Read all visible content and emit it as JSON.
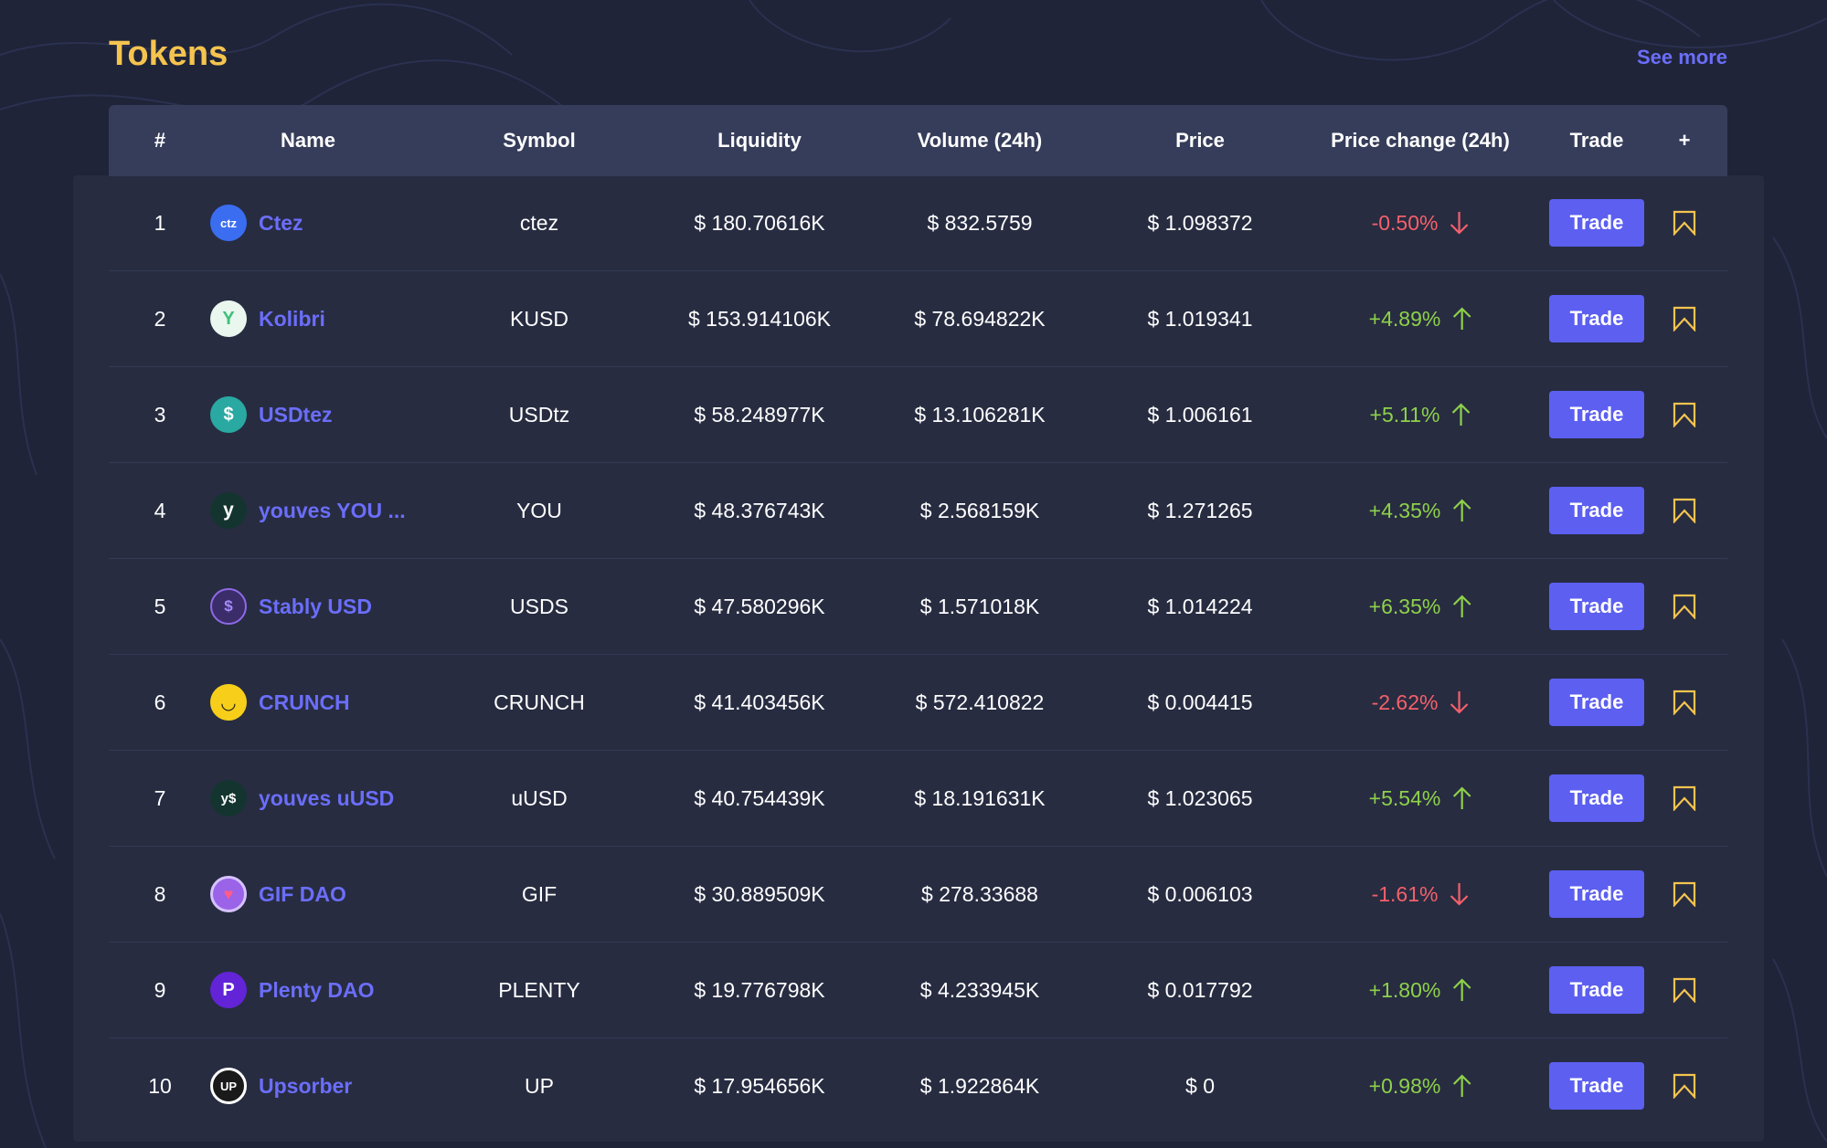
{
  "page": {
    "title": "Tokens",
    "see_more": "See more"
  },
  "colors": {
    "accent": "#5c5ff0",
    "title": "#f5c44f",
    "link": "#6b6ef9",
    "positive": "#8ed14a",
    "negative": "#f4606a",
    "bookmark": "#f5c44f"
  },
  "table": {
    "headers": {
      "index": "#",
      "name": "Name",
      "symbol": "Symbol",
      "liquidity": "Liquidity",
      "volume": "Volume (24h)",
      "price": "Price",
      "price_change": "Price change (24h)",
      "trade": "Trade",
      "add": "+"
    },
    "rows": [
      {
        "index": "1",
        "name": "Ctez",
        "icon": "ctez-logo",
        "symbol": "ctez",
        "liquidity": "$ 180.70616K",
        "volume": "$ 832.5759",
        "price": "$ 1.098372",
        "change": "-0.50%",
        "direction": "down",
        "trade": "Trade"
      },
      {
        "index": "2",
        "name": "Kolibri",
        "icon": "kolibri-logo",
        "symbol": "KUSD",
        "liquidity": "$ 153.914106K",
        "volume": "$ 78.694822K",
        "price": "$ 1.019341",
        "change": "+4.89%",
        "direction": "up",
        "trade": "Trade"
      },
      {
        "index": "3",
        "name": "USDtez",
        "icon": "usdtez-logo",
        "symbol": "USDtz",
        "liquidity": "$ 58.248977K",
        "volume": "$ 13.106281K",
        "price": "$ 1.006161",
        "change": "+5.11%",
        "direction": "up",
        "trade": "Trade"
      },
      {
        "index": "4",
        "name": "youves YOU ...",
        "icon": "youves-logo",
        "symbol": "YOU",
        "liquidity": "$ 48.376743K",
        "volume": "$ 2.568159K",
        "price": "$ 1.271265",
        "change": "+4.35%",
        "direction": "up",
        "trade": "Trade"
      },
      {
        "index": "5",
        "name": "Stably USD",
        "icon": "stably-logo",
        "symbol": "USDS",
        "liquidity": "$ 47.580296K",
        "volume": "$ 1.571018K",
        "price": "$ 1.014224",
        "change": "+6.35%",
        "direction": "up",
        "trade": "Trade"
      },
      {
        "index": "6",
        "name": "CRUNCH",
        "icon": "crunch-logo",
        "symbol": "CRUNCH",
        "liquidity": "$ 41.403456K",
        "volume": "$ 572.410822",
        "price": "$ 0.004415",
        "change": "-2.62%",
        "direction": "down",
        "trade": "Trade"
      },
      {
        "index": "7",
        "name": "youves uUSD",
        "icon": "uusd-logo",
        "symbol": "uUSD",
        "liquidity": "$ 40.754439K",
        "volume": "$ 18.191631K",
        "price": "$ 1.023065",
        "change": "+5.54%",
        "direction": "up",
        "trade": "Trade"
      },
      {
        "index": "8",
        "name": "GIF DAO",
        "icon": "gif-dao-logo",
        "symbol": "GIF",
        "liquidity": "$ 30.889509K",
        "volume": "$ 278.33688",
        "price": "$ 0.006103",
        "change": "-1.61%",
        "direction": "down",
        "trade": "Trade"
      },
      {
        "index": "9",
        "name": "Plenty DAO",
        "icon": "plenty-logo",
        "symbol": "PLENTY",
        "liquidity": "$ 19.776798K",
        "volume": "$ 4.233945K",
        "price": "$ 0.017792",
        "change": "+1.80%",
        "direction": "up",
        "trade": "Trade"
      },
      {
        "index": "10",
        "name": "Upsorber",
        "icon": "upsorber-logo",
        "symbol": "UP",
        "liquidity": "$ 17.954656K",
        "volume": "$ 1.922864K",
        "price": "$ 0",
        "change": "+0.98%",
        "direction": "up",
        "trade": "Trade"
      }
    ]
  }
}
